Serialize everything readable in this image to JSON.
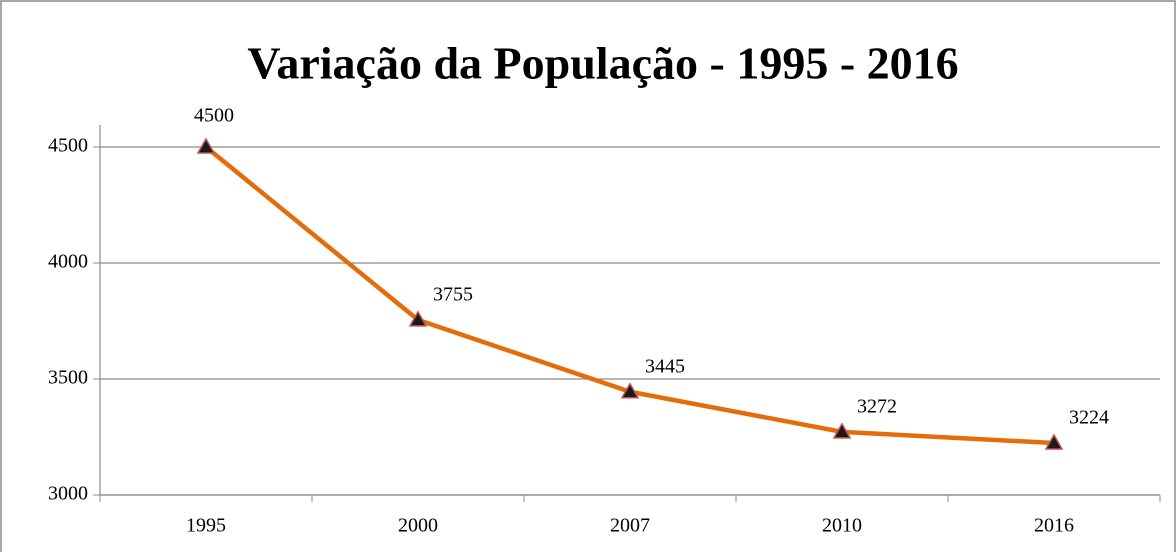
{
  "chart_data": {
    "type": "line",
    "title": "Variação da População - 1995 - 2016",
    "categories": [
      "1995",
      "2000",
      "2007",
      "2010",
      "2016"
    ],
    "values": [
      4500,
      3755,
      3445,
      3272,
      3224
    ],
    "color": "#e46c0a",
    "marker_color": "#1a1a1a",
    "marker_edge_color": "#c0504d",
    "ylim": [
      3000,
      4500
    ],
    "yticks": [
      3000,
      3500,
      4000,
      4500
    ],
    "grid": true
  }
}
